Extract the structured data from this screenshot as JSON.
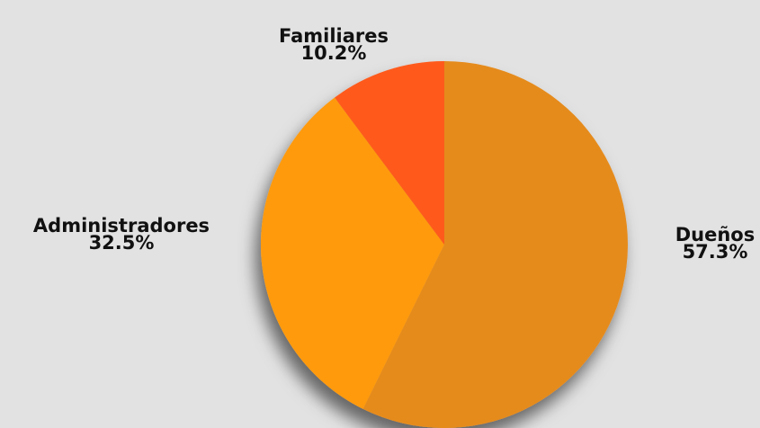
{
  "chart_data": {
    "type": "pie",
    "title": "",
    "slices": [
      {
        "label": "Dueños",
        "value": 57.3,
        "display": "57.3%",
        "color": "#e58b1e"
      },
      {
        "label": "Administradores",
        "value": 32.5,
        "display": "32.5%",
        "color": "#ff9a0c"
      },
      {
        "label": "Familiares",
        "value": 10.2,
        "display": "10.2%",
        "color": "#ff5a1a"
      }
    ],
    "start_angle_deg": 0,
    "direction": "clockwise",
    "legend": "none"
  }
}
